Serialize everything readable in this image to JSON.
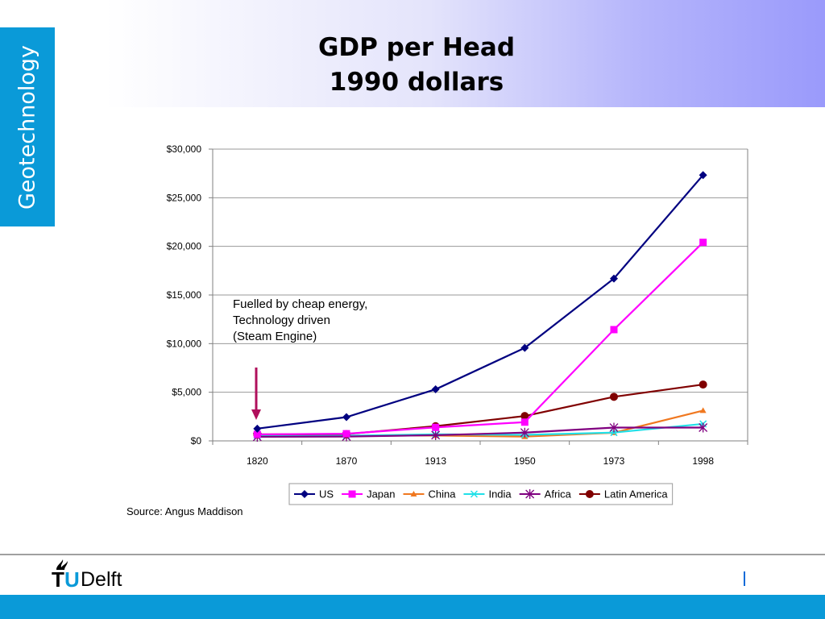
{
  "slide": {
    "title_line1": "GDP per Head",
    "title_line2": "1990 dollars",
    "side_label": "Geotechnology",
    "source": "Source: Angus Maddison",
    "logo_text_t": "T",
    "logo_text_u": "U",
    "logo_text_delft": "Delft"
  },
  "colors": {
    "accent_blue": "#0a9ad8",
    "annotation_arrow": "#b0105c"
  },
  "chart_data": {
    "type": "line",
    "title": "",
    "xlabel": "",
    "ylabel": "",
    "categories": [
      "1820",
      "1870",
      "1913",
      "1950",
      "1973",
      "1998"
    ],
    "ylim": [
      0,
      30000
    ],
    "yticks": [
      0,
      5000,
      10000,
      15000,
      20000,
      25000,
      30000
    ],
    "ytick_labels": [
      "$0",
      "$5,000",
      "$10,000",
      "$15,000",
      "$20,000",
      "$25,000",
      "$30,000"
    ],
    "grid": true,
    "legend_position": "bottom",
    "series": [
      {
        "name": "US",
        "color": "#000080",
        "marker": "diamond",
        "values": [
          1257,
          2445,
          5301,
          9561,
          16689,
          27331
        ]
      },
      {
        "name": "Japan",
        "color": "#ff00ff",
        "marker": "square",
        "values": [
          669,
          737,
          1387,
          1926,
          11439,
          20413
        ]
      },
      {
        "name": "China",
        "color": "#f07820",
        "marker": "triangle",
        "values": [
          600,
          530,
          552,
          439,
          839,
          3117
        ]
      },
      {
        "name": "India",
        "color": "#20e0e8",
        "marker": "x",
        "values": [
          533,
          533,
          673,
          619,
          853,
          1746
        ]
      },
      {
        "name": "Africa",
        "color": "#800080",
        "marker": "star",
        "values": [
          418,
          444,
          585,
          852,
          1365,
          1368
        ]
      },
      {
        "name": "Latin America",
        "color": "#800000",
        "marker": "circle",
        "values": [
          665,
          698,
          1511,
          2554,
          4531,
          5795
        ]
      }
    ],
    "annotation": {
      "lines": [
        "Fuelled by cheap energy,",
        "Technology driven",
        "(Steam Engine)"
      ],
      "points_to": "1820"
    }
  }
}
